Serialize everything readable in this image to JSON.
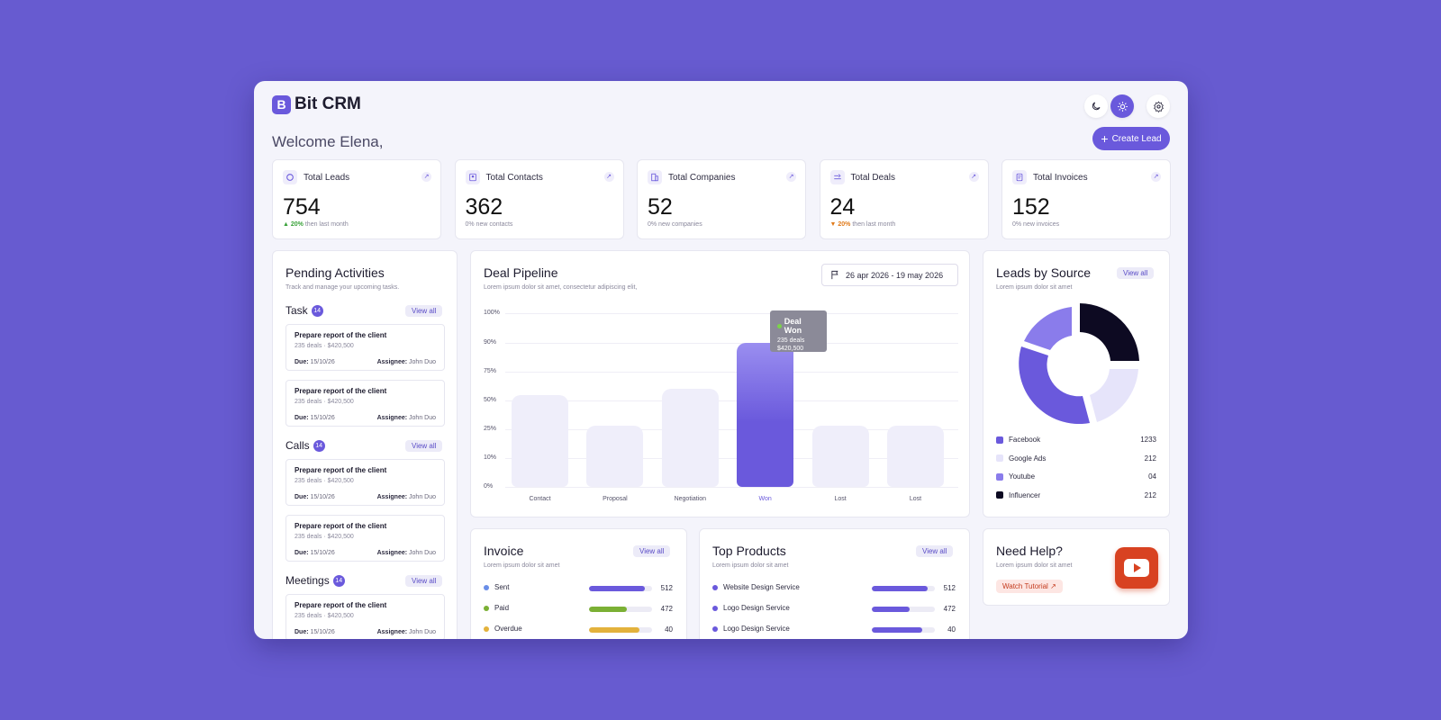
{
  "app": {
    "name": "Bit CRM",
    "logo_letter": "B"
  },
  "header": {
    "theme_dark_icon": "moon-icon",
    "theme_light_icon": "sun-icon",
    "settings_icon": "gear-icon"
  },
  "welcome": "Welcome Elena,",
  "create_lead_label": "Create Lead",
  "stats": [
    {
      "label": "Total Leads",
      "value": "754",
      "change": "20%",
      "trend": "up",
      "note": "then last month"
    },
    {
      "label": "Total Contacts",
      "value": "362",
      "change": "",
      "trend": "none",
      "note": "0% new contacts"
    },
    {
      "label": "Total Companies",
      "value": "52",
      "change": "",
      "trend": "none",
      "note": "0% new companies"
    },
    {
      "label": "Total Deals",
      "value": "24",
      "change": "20%",
      "trend": "down",
      "note": "then last month"
    },
    {
      "label": "Total Invoices",
      "value": "152",
      "change": "",
      "trend": "none",
      "note": "0% new invoices"
    }
  ],
  "pending": {
    "title": "Pending Activities",
    "subtitle": "Track and manage your upcoming tasks.",
    "view_all": "View all",
    "due_label": "Due:",
    "assignee_label": "Assignee:",
    "sections": [
      {
        "name": "Task",
        "count": "14",
        "items": [
          {
            "title": "Prepare report of the client",
            "meta": "235 deals · $420,500",
            "due": "15/10/26",
            "assignee": "John Duo"
          },
          {
            "title": "Prepare report of the client",
            "meta": "235 deals · $420,500",
            "due": "15/10/26",
            "assignee": "John Duo"
          }
        ]
      },
      {
        "name": "Calls",
        "count": "14",
        "items": [
          {
            "title": "Prepare report of the client",
            "meta": "235 deals · $420,500",
            "due": "15/10/26",
            "assignee": "John Duo"
          },
          {
            "title": "Prepare report of the client",
            "meta": "235 deals · $420,500",
            "due": "15/10/26",
            "assignee": "John Duo"
          }
        ]
      },
      {
        "name": "Meetings",
        "count": "14",
        "items": [
          {
            "title": "Prepare report of the client",
            "meta": "235 deals · $420,500",
            "due": "15/10/26",
            "assignee": "John Duo"
          }
        ]
      }
    ]
  },
  "pipeline": {
    "title": "Deal Pipeline",
    "subtitle": "Lorem ipsum dolor sit amet, consectetur adipiscing elit,",
    "date_range": "26 apr 2026 - 19 may 2026",
    "tooltip": {
      "title": "Deal Won",
      "line1": "235 deals",
      "line2": "$420,500"
    }
  },
  "chart_data": {
    "type": "bar",
    "categories": [
      "Contact",
      "Proposal",
      "Negotiation",
      "Won",
      "Lost",
      "Lost"
    ],
    "values": [
      55,
      28,
      60,
      90,
      28,
      28
    ],
    "highlight": "Won",
    "y_ticks": [
      "0%",
      "10%",
      "25%",
      "50%",
      "75%",
      "90%",
      "100%"
    ],
    "highlight_color": "#6a59dc",
    "bar_color": "#efeefa"
  },
  "leads_by_source": {
    "title": "Leads by Source",
    "subtitle": "Lorem ipsum dolor sit amet",
    "view_all": "View all",
    "items": [
      {
        "name": "Facebook",
        "value": "1233",
        "color": "#6a59dc"
      },
      {
        "name": "Google Ads",
        "value": "212",
        "color": "#e6e4fa"
      },
      {
        "name": "Youtube",
        "value": "04",
        "color": "#8a7ceb"
      },
      {
        "name": "Influencer",
        "value": "212",
        "color": "#0d0a22"
      }
    ]
  },
  "invoice": {
    "title": "Invoice",
    "subtitle": "Lorem ipsum dolor sit amet",
    "view_all": "View all",
    "items": [
      {
        "name": "Sent",
        "value": "512",
        "fill": 0.88,
        "color": "#6a59dc",
        "dot": "#6a8ee8"
      },
      {
        "name": "Paid",
        "value": "472",
        "fill": 0.6,
        "color": "#7bb034",
        "dot": "#7bb034"
      },
      {
        "name": "Overdue",
        "value": "40",
        "fill": 0.8,
        "color": "#e3b23c",
        "dot": "#e3b23c"
      }
    ]
  },
  "top_products": {
    "title": "Top Products",
    "subtitle": "Lorem ipsum dolor sit amet",
    "view_all": "View all",
    "items": [
      {
        "name": "Website Design Service",
        "value": "512",
        "fill": 0.88,
        "color": "#6a59dc"
      },
      {
        "name": "Logo Design Service",
        "value": "472",
        "fill": 0.6,
        "color": "#6a59dc"
      },
      {
        "name": "Logo Design Service",
        "value": "40",
        "fill": 0.8,
        "color": "#6a59dc"
      }
    ]
  },
  "help": {
    "title": "Need Help?",
    "subtitle": "Lorem ipsum dolor sit amet",
    "watch_label": "Watch Tutorial",
    "video_icon": "youtube-icon"
  }
}
